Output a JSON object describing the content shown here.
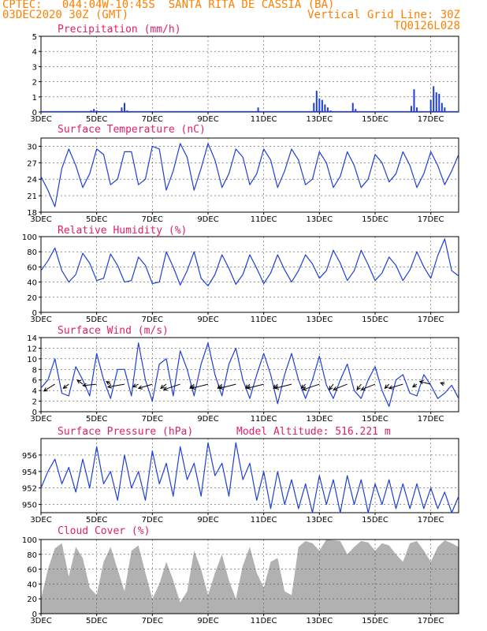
{
  "header": {
    "line1_left": "CPTEC:   044:04W-10:45S  SANTA RITA DE CASSIA (BA)",
    "line2_left": "03DEC2020 30Z (GMT)",
    "line2_right": "Vertical Grid Line: 30Z",
    "line3_right": "TQ0126L028"
  },
  "colors": {
    "header": "#ff8000",
    "title": "#e0206a",
    "series": "#1f3fd6",
    "cloud": "#a8a8a8"
  },
  "x_axis": {
    "unit": "day of December 2020",
    "range": [
      3,
      18
    ],
    "ticks": [
      "3DEC",
      "5DEC",
      "7DEC",
      "9DEC",
      "11DEC",
      "13DEC",
      "15DEC",
      "17DEC"
    ],
    "tick_values": [
      3,
      5,
      7,
      9,
      11,
      13,
      15,
      17
    ]
  },
  "chart_data": [
    {
      "id": "precip",
      "type": "bar",
      "title": "Precipitation (mm/h)",
      "ylim": [
        0,
        5
      ],
      "yticks": [
        0,
        1,
        2,
        3,
        4,
        5
      ],
      "grid": true,
      "x": [
        4.8,
        4.9,
        5.0,
        5.9,
        6.0,
        6.1,
        10.8,
        12.8,
        12.9,
        13.0,
        13.1,
        13.2,
        13.3,
        13.4,
        14.2,
        14.3,
        16.3,
        16.4,
        16.5,
        17.0,
        17.1,
        17.2,
        17.3,
        17.4,
        17.5
      ],
      "values": [
        0.1,
        0.2,
        0.1,
        0.3,
        0.6,
        0.1,
        0.3,
        0.6,
        1.4,
        0.9,
        0.8,
        0.5,
        0.3,
        0.1,
        0.6,
        0.2,
        0.4,
        1.5,
        0.3,
        0.8,
        1.7,
        1.3,
        1.2,
        0.6,
        0.3
      ]
    },
    {
      "id": "temp",
      "type": "line",
      "title": "Surface Temperature (nC)",
      "ylim": [
        18,
        31.5
      ],
      "yticks": [
        18,
        21,
        24,
        27,
        30
      ],
      "grid": true,
      "x": [
        3.0,
        3.25,
        3.5,
        3.75,
        4.0,
        4.25,
        4.5,
        4.75,
        5.0,
        5.25,
        5.5,
        5.75,
        6.0,
        6.25,
        6.5,
        6.75,
        7.0,
        7.25,
        7.5,
        7.75,
        8.0,
        8.25,
        8.5,
        8.75,
        9.0,
        9.25,
        9.5,
        9.75,
        10.0,
        10.25,
        10.5,
        10.75,
        11.0,
        11.25,
        11.5,
        11.75,
        12.0,
        12.25,
        12.5,
        12.75,
        13.0,
        13.25,
        13.5,
        13.75,
        14.0,
        14.25,
        14.5,
        14.75,
        15.0,
        15.25,
        15.5,
        15.75,
        16.0,
        16.25,
        16.5,
        16.75,
        17.0,
        17.25,
        17.5,
        17.75,
        18.0
      ],
      "values": [
        24.5,
        22,
        19,
        26,
        29.5,
        26.5,
        22.5,
        25,
        29.5,
        28.5,
        23,
        24,
        29,
        29,
        23,
        24,
        30,
        29.5,
        22,
        25.5,
        30.5,
        28,
        22,
        26,
        30.5,
        27.5,
        22.5,
        25,
        29.5,
        28,
        23,
        25,
        29.5,
        27.5,
        22.5,
        25.5,
        29.5,
        27.5,
        23,
        24,
        29,
        27,
        22.5,
        24.5,
        29,
        26.5,
        22.5,
        24,
        28.5,
        27,
        23.5,
        25,
        29,
        26.5,
        22.5,
        25,
        29,
        26.5,
        23,
        25.5,
        28.5
      ]
    },
    {
      "id": "rh",
      "type": "line",
      "title": "Relative Humidity (%)",
      "ylim": [
        0,
        100
      ],
      "yticks": [
        0,
        20,
        40,
        60,
        80,
        100
      ],
      "grid": true,
      "x": [
        3.0,
        3.25,
        3.5,
        3.75,
        4.0,
        4.25,
        4.5,
        4.75,
        5.0,
        5.25,
        5.5,
        5.75,
        6.0,
        6.25,
        6.5,
        6.75,
        7.0,
        7.25,
        7.5,
        7.75,
        8.0,
        8.25,
        8.5,
        8.75,
        9.0,
        9.25,
        9.5,
        9.75,
        10.0,
        10.25,
        10.5,
        10.75,
        11.0,
        11.25,
        11.5,
        11.75,
        12.0,
        12.25,
        12.5,
        12.75,
        13.0,
        13.25,
        13.5,
        13.75,
        14.0,
        14.25,
        14.5,
        14.75,
        15.0,
        15.25,
        15.5,
        15.75,
        16.0,
        16.25,
        16.5,
        16.75,
        17.0,
        17.25,
        17.5,
        17.75,
        18.0
      ],
      "values": [
        55,
        68,
        85,
        55,
        40,
        50,
        78,
        65,
        42,
        45,
        77,
        62,
        40,
        42,
        73,
        62,
        38,
        40,
        80,
        60,
        36,
        55,
        80,
        45,
        35,
        50,
        76,
        58,
        37,
        50,
        76,
        58,
        38,
        52,
        76,
        56,
        40,
        55,
        76,
        64,
        45,
        55,
        82,
        65,
        42,
        55,
        82,
        63,
        42,
        52,
        73,
        62,
        42,
        56,
        80,
        60,
        45,
        75,
        97,
        55,
        48
      ]
    },
    {
      "id": "wind",
      "type": "line",
      "title": "Surface Wind (m/s)",
      "ylim": [
        0,
        14
      ],
      "yticks": [
        0,
        2,
        4,
        6,
        8,
        10,
        12,
        14
      ],
      "grid": true,
      "x": [
        3.0,
        3.25,
        3.5,
        3.75,
        4.0,
        4.25,
        4.5,
        4.75,
        5.0,
        5.25,
        5.5,
        5.75,
        6.0,
        6.25,
        6.5,
        6.75,
        7.0,
        7.25,
        7.5,
        7.75,
        8.0,
        8.25,
        8.5,
        8.75,
        9.0,
        9.25,
        9.5,
        9.75,
        10.0,
        10.25,
        10.5,
        10.75,
        11.0,
        11.25,
        11.5,
        11.75,
        12.0,
        12.25,
        12.5,
        12.75,
        13.0,
        13.25,
        13.5,
        13.75,
        14.0,
        14.25,
        14.5,
        14.75,
        15.0,
        15.25,
        15.5,
        15.75,
        16.0,
        16.25,
        16.5,
        16.75,
        17.0,
        17.25,
        17.5,
        17.75,
        18.0
      ],
      "values": [
        4.5,
        6,
        10,
        3.5,
        3,
        8.5,
        6,
        3,
        11,
        6,
        2.5,
        8,
        8,
        3,
        13,
        6,
        2,
        9,
        10,
        3,
        11.5,
        8,
        3,
        9,
        13,
        7,
        3,
        9,
        12,
        6,
        2.5,
        7,
        11,
        7,
        1.5,
        7,
        11,
        6,
        2.5,
        6,
        10.5,
        5,
        2.5,
        6,
        9,
        4,
        2.5,
        6,
        8.5,
        4,
        1,
        6,
        7,
        3.5,
        3,
        7,
        5,
        2.5,
        3.5,
        5,
        2.5
      ]
    },
    {
      "id": "pressure",
      "type": "line",
      "title": "Surface Pressure (hPa)",
      "annotation": "Model Altitude: 516.221 m",
      "ylim": [
        949,
        958
      ],
      "yticks": [
        950,
        952,
        954,
        956
      ],
      "grid": true,
      "x": [
        3.0,
        3.25,
        3.5,
        3.75,
        4.0,
        4.25,
        4.5,
        4.75,
        5.0,
        5.25,
        5.5,
        5.75,
        6.0,
        6.25,
        6.5,
        6.75,
        7.0,
        7.25,
        7.5,
        7.75,
        8.0,
        8.25,
        8.5,
        8.75,
        9.0,
        9.25,
        9.5,
        9.75,
        10.0,
        10.25,
        10.5,
        10.75,
        11.0,
        11.25,
        11.5,
        11.75,
        12.0,
        12.25,
        12.5,
        12.75,
        13.0,
        13.25,
        13.5,
        13.75,
        14.0,
        14.25,
        14.5,
        14.75,
        15.0,
        15.25,
        15.5,
        15.75,
        16.0,
        16.25,
        16.5,
        16.75,
        17.0,
        17.25,
        17.5,
        17.75,
        18.0
      ],
      "values": [
        952,
        954,
        955.5,
        952.5,
        954.5,
        951.5,
        955.5,
        952,
        957,
        952.5,
        954,
        950.5,
        956,
        952,
        954,
        950.5,
        956.5,
        952.5,
        955,
        951,
        957,
        953,
        955,
        951,
        957.5,
        953.5,
        955,
        951,
        957.5,
        953,
        955,
        950.5,
        954,
        949.5,
        954,
        950,
        953,
        949.5,
        952.5,
        949,
        953.5,
        950,
        953,
        949,
        953.5,
        950,
        953,
        949,
        952.5,
        950,
        953,
        949.5,
        952.5,
        949.5,
        952.5,
        949.5,
        952,
        949.5,
        951.5,
        949,
        951
      ]
    },
    {
      "id": "cloud",
      "type": "area",
      "title": "Cloud Cover (%)",
      "ylim": [
        0,
        100
      ],
      "yticks": [
        0,
        20,
        40,
        60,
        80,
        100
      ],
      "grid": true,
      "x": [
        3.0,
        3.25,
        3.5,
        3.75,
        4.0,
        4.25,
        4.5,
        4.75,
        5.0,
        5.25,
        5.5,
        5.75,
        6.0,
        6.25,
        6.5,
        6.75,
        7.0,
        7.25,
        7.5,
        7.75,
        8.0,
        8.25,
        8.5,
        8.75,
        9.0,
        9.25,
        9.5,
        9.75,
        10.0,
        10.25,
        10.5,
        10.75,
        11.0,
        11.25,
        11.5,
        11.75,
        12.0,
        12.25,
        12.5,
        12.75,
        13.0,
        13.25,
        13.5,
        13.75,
        14.0,
        14.25,
        14.5,
        14.75,
        15.0,
        15.25,
        15.5,
        15.75,
        16.0,
        16.25,
        16.5,
        16.75,
        17.0,
        17.25,
        17.5,
        17.75,
        18.0
      ],
      "values": [
        20,
        60,
        88,
        95,
        50,
        90,
        75,
        35,
        25,
        70,
        90,
        60,
        30,
        85,
        92,
        55,
        20,
        40,
        70,
        45,
        15,
        30,
        85,
        60,
        25,
        55,
        80,
        45,
        20,
        65,
        90,
        55,
        35,
        70,
        75,
        30,
        25,
        90,
        98,
        95,
        85,
        100,
        99,
        98,
        80,
        90,
        98,
        96,
        85,
        95,
        92,
        80,
        70,
        95,
        98,
        85,
        70,
        90,
        99,
        95,
        90
      ]
    }
  ],
  "wind_arrows": {
    "speed_unit": "m/s",
    "reading_line_value": 5.2,
    "x": [
      3.5,
      4.0,
      4.5,
      5.0,
      5.5,
      6.0,
      6.5,
      7.0,
      7.5,
      8.0,
      8.5,
      9.0,
      9.5,
      10.0,
      10.5,
      11.0,
      11.5,
      12.0,
      12.5,
      13.0,
      13.5,
      14.0,
      14.5,
      15.0,
      15.5,
      16.0,
      16.5,
      17.0,
      17.5
    ],
    "u": [
      -4,
      -2,
      -2,
      -5,
      -1.5,
      -6,
      -2,
      -5,
      -2,
      -6,
      -1.5,
      -6,
      -1.5,
      -6,
      -1.5,
      -6,
      -1.5,
      -6,
      -1.5,
      -6,
      -1.5,
      -5,
      -1.5,
      -5,
      -1.5,
      -5,
      -1.5,
      -4,
      -1.5
    ],
    "v": [
      -2.5,
      -1.5,
      1.5,
      -0.5,
      1,
      -1,
      -1,
      -1.5,
      -1.5,
      -2,
      -1.5,
      -1.5,
      -1.5,
      -1.5,
      -1.5,
      -1.5,
      -1.5,
      -1.5,
      -1.5,
      -2,
      -2,
      -2,
      -2,
      -2,
      -1.5,
      -1.5,
      -1,
      1,
      0.5
    ]
  }
}
